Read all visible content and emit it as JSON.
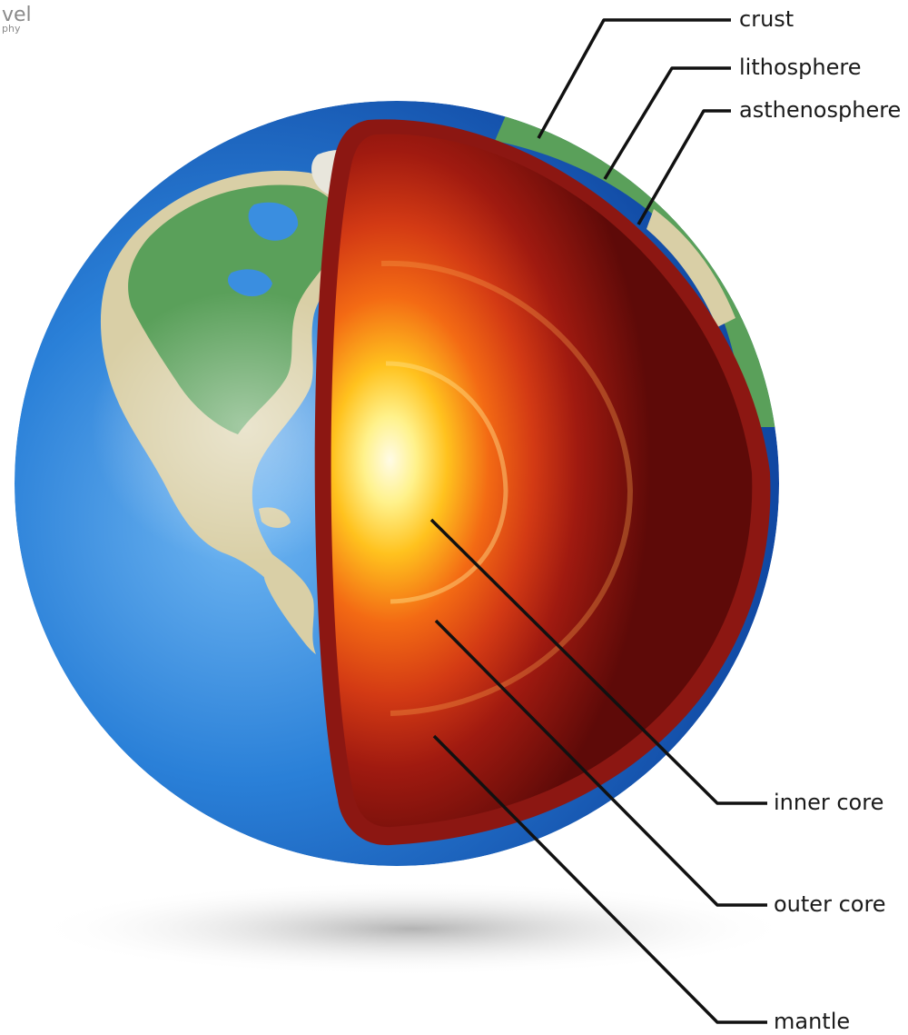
{
  "watermark": {
    "line1": "vel",
    "line2": "phy"
  },
  "labels": {
    "crust": "crust",
    "lithosphere": "lithosphere",
    "asthenosphere": "asthenosphere",
    "inner_core": "inner core",
    "outer_core": "outer core",
    "mantle": "mantle"
  },
  "colors": {
    "ocean": "#1e6fc8",
    "land": "#5aa05a",
    "sand": "#d9cfa6",
    "mantle": "#7a0f0c",
    "outer_core": "#e0401a",
    "inner_core": "#fff2a0",
    "leader_line": "#111111"
  }
}
